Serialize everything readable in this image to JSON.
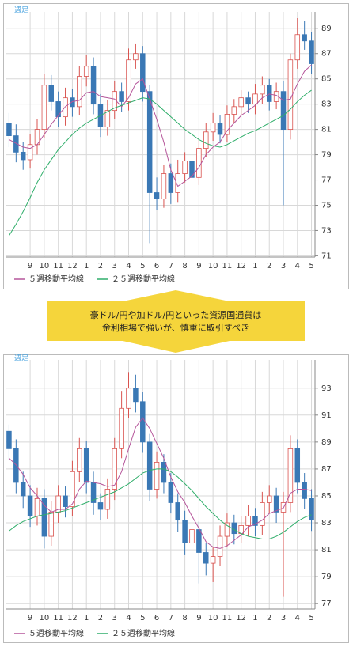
{
  "chart_data": [
    {
      "type": "candlestick",
      "label": "週足",
      "categories": [
        null,
        null,
        null,
        "9",
        null,
        "10",
        null,
        "11",
        null,
        "12",
        null,
        "1",
        null,
        "2",
        null,
        "3",
        null,
        "4",
        null,
        "5",
        null,
        "6",
        null,
        "7",
        null,
        "8",
        null,
        "9",
        null,
        "10",
        null,
        "11",
        null,
        "12",
        null,
        "1",
        null,
        "2",
        null,
        "3",
        null,
        "4",
        null,
        "5"
      ],
      "open": [
        81.5,
        80.5,
        79.2,
        78.6,
        79.8,
        81.0,
        84.5,
        83.2,
        82.0,
        83.5,
        82.8,
        85.2,
        86.0,
        83.0,
        81.2,
        82.5,
        84.0,
        83.2,
        86.5,
        87.0,
        84.0,
        76.0,
        75.5,
        77.5,
        76.0,
        77.5,
        78.5,
        77.2,
        79.5,
        80.8,
        81.5,
        80.6,
        82.2,
        82.8,
        83.5,
        83.0,
        83.8,
        84.5,
        83.2,
        84.0,
        81.0,
        86.5,
        88.5,
        88.0
      ],
      "high": [
        82.3,
        81.4,
        80.0,
        80.6,
        81.8,
        85.4,
        85.3,
        84.0,
        84.3,
        84.2,
        86.0,
        86.9,
        86.7,
        83.8,
        83.3,
        84.8,
        84.7,
        87.4,
        87.8,
        87.6,
        84.5,
        77.2,
        78.2,
        78.3,
        78.6,
        79.2,
        79.0,
        80.3,
        81.5,
        82.3,
        82.1,
        82.9,
        83.4,
        84.1,
        84.0,
        84.6,
        85.2,
        85.0,
        84.7,
        84.8,
        87.0,
        89.8,
        89.6,
        88.7
      ],
      "low": [
        79.6,
        78.4,
        77.8,
        77.9,
        79.0,
        80.3,
        82.5,
        81.2,
        81.3,
        82.0,
        82.1,
        84.4,
        82.2,
        80.4,
        80.5,
        81.8,
        82.4,
        82.5,
        85.8,
        83.2,
        72.0,
        74.6,
        74.8,
        75.1,
        75.2,
        76.8,
        76.5,
        76.6,
        78.8,
        80.1,
        79.9,
        80.0,
        81.5,
        82.1,
        82.3,
        82.2,
        83.0,
        82.5,
        82.6,
        75.0,
        80.2,
        85.8,
        87.3,
        85.4
      ],
      "close": [
        80.5,
        79.2,
        78.6,
        79.8,
        81.0,
        84.5,
        83.2,
        82.0,
        83.5,
        82.8,
        85.2,
        86.0,
        83.0,
        81.2,
        82.5,
        84.0,
        83.2,
        86.5,
        87.0,
        84.0,
        76.0,
        75.5,
        77.5,
        76.0,
        77.5,
        78.5,
        77.2,
        79.5,
        80.8,
        81.5,
        80.6,
        82.2,
        82.8,
        83.5,
        83.0,
        83.8,
        84.5,
        83.2,
        84.0,
        81.0,
        86.5,
        88.5,
        88.0,
        86.2
      ],
      "up_color": "#d9534f",
      "down_color": "#3a78b5",
      "series": [
        {
          "name": "５週移動平均線",
          "color": "#b5559a",
          "values": [
            80.2,
            79.9,
            79.6,
            79.5,
            79.8,
            80.6,
            81.4,
            82.1,
            82.8,
            83.2,
            83.3,
            83.9,
            84.0,
            83.6,
            83.5,
            83.4,
            82.8,
            83.5,
            84.6,
            85.0,
            83.4,
            81.8,
            80.0,
            77.8,
            76.5,
            76.9,
            77.3,
            78.0,
            79.0,
            79.6,
            80.0,
            80.9,
            81.5,
            82.1,
            82.5,
            82.9,
            83.5,
            83.8,
            83.7,
            83.3,
            83.4,
            84.6,
            85.6,
            86.1
          ]
        },
        {
          "name": "２５週移動平均線",
          "color": "#2fae6a",
          "values": [
            72.6,
            73.5,
            74.5,
            75.6,
            76.8,
            77.8,
            78.6,
            79.4,
            80.0,
            80.6,
            81.1,
            81.5,
            81.8,
            82.1,
            82.4,
            82.7,
            82.9,
            83.1,
            83.3,
            83.5,
            83.4,
            83.0,
            82.5,
            82.0,
            81.5,
            81.0,
            80.6,
            80.2,
            79.9,
            79.7,
            79.6,
            79.8,
            80.1,
            80.4,
            80.7,
            80.9,
            81.2,
            81.5,
            81.8,
            82.1,
            82.6,
            83.2,
            83.7,
            84.1
          ]
        }
      ],
      "ylim": [
        70.9,
        90.3
      ],
      "yticks": [
        71,
        73,
        75,
        77,
        79,
        81,
        83,
        85,
        87,
        89
      ],
      "grid": true
    },
    {
      "type": "candlestick",
      "label": "週足",
      "categories": [
        null,
        null,
        null,
        "9",
        null,
        "10",
        null,
        "11",
        null,
        "12",
        null,
        "1",
        null,
        "2",
        null,
        "3",
        null,
        "4",
        null,
        "5",
        null,
        "6",
        null,
        "7",
        null,
        "8",
        null,
        "9",
        null,
        "10",
        null,
        "11",
        null,
        "12",
        null,
        "1",
        null,
        "2",
        null,
        "3",
        null,
        "4",
        null,
        "5"
      ],
      "open": [
        89.8,
        88.5,
        86.0,
        85.0,
        83.5,
        84.8,
        82.0,
        83.8,
        85.0,
        84.2,
        86.8,
        88.5,
        86.0,
        84.5,
        84.0,
        85.5,
        88.5,
        91.5,
        93.0,
        92.0,
        89.0,
        85.5,
        87.5,
        86.0,
        84.5,
        83.2,
        81.5,
        82.5,
        80.8,
        80.0,
        80.5,
        82.0,
        83.0,
        82.2,
        82.8,
        83.5,
        82.8,
        84.5,
        85.0,
        83.8,
        84.5,
        88.5,
        86.0,
        84.8
      ],
      "high": [
        90.3,
        89.2,
        86.8,
        85.8,
        85.6,
        85.5,
        84.6,
        85.8,
        85.7,
        87.6,
        89.3,
        89.1,
        86.8,
        85.2,
        86.3,
        89.3,
        92.8,
        94.2,
        94.0,
        92.7,
        89.6,
        88.3,
        88.1,
        86.7,
        85.2,
        83.9,
        83.3,
        83.1,
        81.5,
        81.2,
        82.8,
        83.7,
        83.6,
        83.5,
        84.3,
        84.1,
        85.3,
        85.8,
        85.6,
        85.3,
        89.5,
        89.2,
        86.7,
        85.5
      ],
      "low": [
        87.7,
        85.2,
        84.1,
        82.7,
        82.8,
        81.1,
        81.3,
        83.0,
        83.4,
        83.5,
        86.0,
        85.2,
        83.6,
        83.2,
        83.3,
        84.7,
        87.8,
        90.8,
        91.2,
        88.2,
        84.6,
        84.8,
        85.2,
        83.7,
        82.3,
        80.6,
        80.8,
        78.5,
        79.1,
        78.6,
        79.8,
        81.2,
        81.4,
        81.5,
        82.0,
        82.0,
        82.1,
        83.7,
        83.0,
        77.5,
        83.8,
        85.2,
        84.0,
        82.4
      ],
      "close": [
        88.5,
        86.0,
        85.0,
        83.5,
        84.8,
        82.0,
        83.8,
        85.0,
        84.2,
        86.8,
        88.5,
        86.0,
        84.5,
        84.0,
        85.5,
        88.5,
        91.5,
        93.0,
        92.0,
        89.0,
        85.5,
        87.5,
        86.0,
        84.5,
        83.2,
        81.5,
        82.5,
        80.8,
        80.0,
        80.5,
        82.0,
        83.0,
        82.2,
        82.8,
        83.5,
        82.8,
        84.5,
        85.0,
        83.8,
        84.5,
        88.5,
        86.0,
        84.8,
        83.2
      ],
      "up_color": "#d9534f",
      "down_color": "#3a78b5",
      "series": [
        {
          "name": "５週移動平均線",
          "color": "#b5559a",
          "values": [
            87.8,
            87.3,
            86.6,
            85.6,
            85.0,
            84.3,
            83.8,
            84.0,
            84.0,
            84.4,
            85.5,
            86.1,
            86.0,
            85.9,
            85.7,
            85.8,
            86.8,
            88.5,
            90.1,
            90.8,
            90.0,
            88.9,
            87.8,
            86.4,
            85.3,
            84.5,
            83.5,
            82.6,
            81.6,
            81.2,
            81.1,
            81.3,
            81.7,
            82.1,
            82.7,
            82.9,
            83.2,
            83.7,
            83.9,
            84.1,
            85.2,
            85.5,
            85.5,
            85.4
          ]
        },
        {
          "name": "２５週移動平均線",
          "color": "#2fae6a",
          "values": [
            82.4,
            82.8,
            83.1,
            83.3,
            83.5,
            83.6,
            83.7,
            83.8,
            83.9,
            84.1,
            84.3,
            84.5,
            84.7,
            84.9,
            85.1,
            85.3,
            85.6,
            85.9,
            86.3,
            86.7,
            86.9,
            87.0,
            87.0,
            86.8,
            86.4,
            85.9,
            85.4,
            84.8,
            84.2,
            83.7,
            83.2,
            82.8,
            82.5,
            82.2,
            82.0,
            81.9,
            81.8,
            81.8,
            82.0,
            82.3,
            82.7,
            83.1,
            83.4,
            83.6
          ]
        }
      ],
      "ylim": [
        76.6,
        95.1
      ],
      "yticks": [
        77,
        79,
        81,
        83,
        85,
        87,
        89,
        91,
        93
      ],
      "grid": true
    }
  ],
  "banner": {
    "lines": [
      "豪ドル/円や加ドル/円といった資源国通貨は",
      "金利相場で強いが、慎重に取引すべき"
    ]
  }
}
